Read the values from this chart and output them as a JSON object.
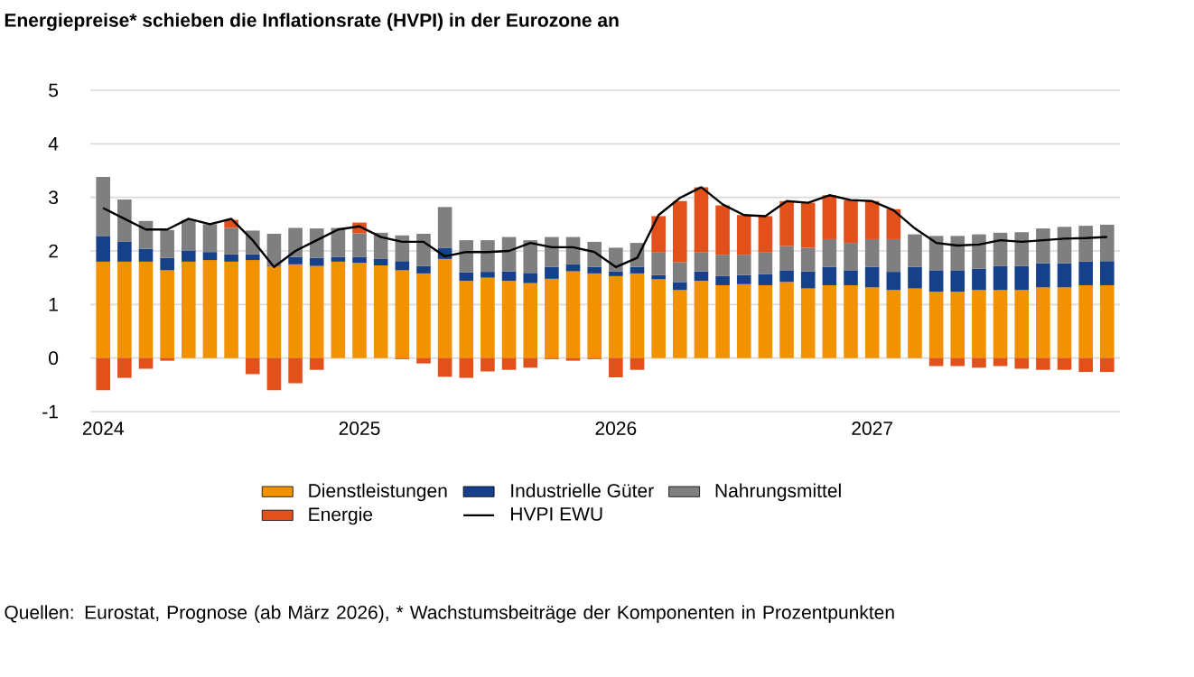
{
  "chart_data": {
    "type": "bar",
    "title": "Energiepreise* schieben die Inflationsrate (HVPI) in der Eurozone an",
    "categories": [
      "2024",
      null,
      null,
      null,
      null,
      null,
      null,
      null,
      null,
      null,
      null,
      null,
      "2025",
      null,
      null,
      null,
      null,
      null,
      null,
      null,
      null,
      null,
      null,
      null,
      "2026",
      null,
      null,
      null,
      null,
      null,
      null,
      null,
      null,
      null,
      null,
      null,
      "2027",
      null,
      null,
      null,
      null,
      null,
      null,
      null,
      null,
      null,
      null,
      null
    ],
    "stacked": true,
    "ylim": [
      -1,
      5
    ],
    "yticks": [
      -1,
      0,
      1,
      2,
      3,
      4,
      5
    ],
    "grid": "y",
    "legend": "bottom",
    "series": [
      {
        "name": "Dienstleistungen",
        "color": "#f39200",
        "values": [
          1.8,
          1.8,
          1.8,
          1.64,
          1.8,
          1.83,
          1.8,
          1.83,
          1.72,
          1.75,
          1.72,
          1.8,
          1.78,
          1.73,
          1.64,
          1.58,
          1.85,
          1.44,
          1.5,
          1.44,
          1.4,
          1.48,
          1.62,
          1.58,
          1.53,
          1.58,
          1.47,
          1.27,
          1.44,
          1.36,
          1.38,
          1.36,
          1.42,
          1.3,
          1.36,
          1.36,
          1.32,
          1.27,
          1.3,
          1.24,
          1.24,
          1.27,
          1.27,
          1.27,
          1.32,
          1.32,
          1.36,
          1.36
        ]
      },
      {
        "name": "Industrielle Güter",
        "color": "#17408b",
        "values": [
          0.48,
          0.37,
          0.24,
          0.23,
          0.21,
          0.15,
          0.14,
          0.11,
          0.02,
          0.14,
          0.15,
          0.09,
          0.11,
          0.12,
          0.17,
          0.14,
          0.21,
          0.16,
          0.11,
          0.18,
          0.19,
          0.22,
          0.13,
          0.12,
          0.09,
          0.12,
          0.08,
          0.15,
          0.18,
          0.17,
          0.17,
          0.21,
          0.22,
          0.32,
          0.34,
          0.28,
          0.38,
          0.34,
          0.4,
          0.4,
          0.4,
          0.4,
          0.45,
          0.45,
          0.45,
          0.45,
          0.44,
          0.45
        ]
      },
      {
        "name": "Nahrungsmittel",
        "color": "#7f7f7f",
        "values": [
          1.1,
          0.79,
          0.52,
          0.52,
          0.57,
          0.52,
          0.49,
          0.44,
          0.58,
          0.54,
          0.55,
          0.54,
          0.44,
          0.49,
          0.48,
          0.6,
          0.76,
          0.6,
          0.59,
          0.64,
          0.61,
          0.56,
          0.51,
          0.47,
          0.44,
          0.45,
          0.42,
          0.37,
          0.35,
          0.4,
          0.38,
          0.4,
          0.45,
          0.44,
          0.52,
          0.51,
          0.52,
          0.61,
          0.61,
          0.64,
          0.64,
          0.64,
          0.62,
          0.63,
          0.65,
          0.68,
          0.67,
          0.68
        ]
      },
      {
        "name": "Energie",
        "color": "#e2501c",
        "values": [
          -0.6,
          -0.37,
          -0.2,
          -0.05,
          0,
          0,
          0.15,
          -0.3,
          -0.6,
          -0.47,
          -0.22,
          0,
          0.2,
          0,
          -0.02,
          -0.1,
          -0.35,
          -0.37,
          -0.25,
          -0.22,
          -0.18,
          -0.02,
          -0.05,
          -0.02,
          -0.36,
          -0.22,
          0.68,
          1.14,
          1.22,
          0.92,
          0.74,
          0.68,
          0.84,
          0.84,
          0.82,
          0.8,
          0.71,
          0.56,
          0,
          -0.15,
          -0.15,
          -0.18,
          -0.15,
          -0.2,
          -0.22,
          -0.22,
          -0.26,
          -0.26
        ]
      },
      {
        "name": "HVPI EWU",
        "type": "line",
        "color": "#000000",
        "values": [
          2.8,
          2.6,
          2.4,
          2.4,
          2.6,
          2.5,
          2.6,
          2.2,
          1.7,
          2.0,
          2.2,
          2.4,
          2.46,
          2.26,
          2.17,
          2.17,
          1.9,
          1.98,
          1.98,
          2.0,
          2.15,
          2.07,
          2.07,
          1.98,
          1.7,
          1.87,
          2.67,
          2.99,
          3.19,
          2.87,
          2.67,
          2.65,
          2.93,
          2.9,
          3.04,
          2.95,
          2.93,
          2.76,
          2.42,
          2.15,
          2.1,
          2.12,
          2.2,
          2.17,
          2.2,
          2.23,
          2.24,
          2.26
        ]
      }
    ],
    "annotations": [
      "Quellen: Eurostat, Prognose (ab März 2026), * Wachstumsbeiträge der Komponenten in Prozentpunkten"
    ]
  }
}
